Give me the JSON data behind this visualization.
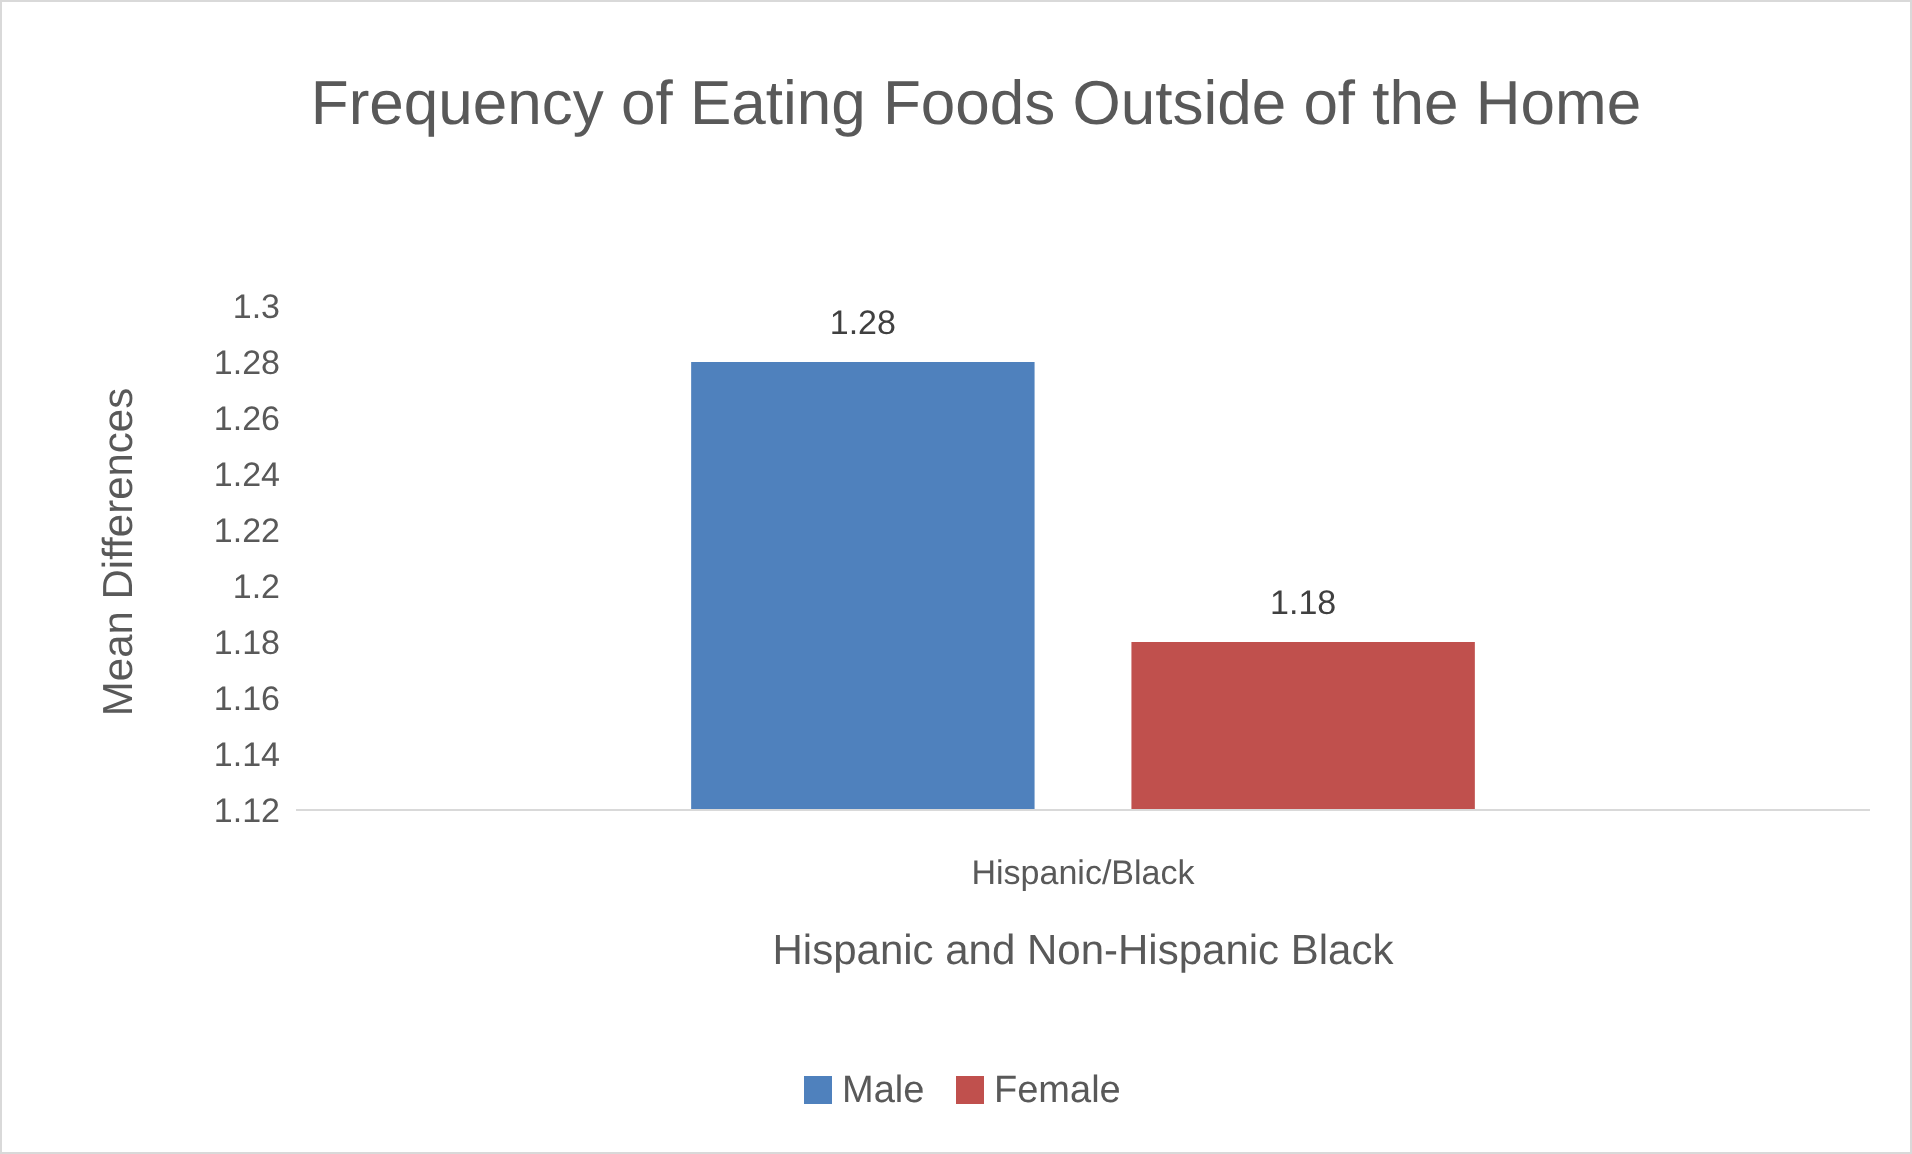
{
  "chart_data": {
    "type": "bar",
    "title": "Frequency of Eating Foods Outside of the Home",
    "xlabel": "Hispanic and Non-Hispanic Black",
    "ylabel": "Mean Differences",
    "categories": [
      "Hispanic/Black"
    ],
    "series": [
      {
        "name": "Male",
        "color": "#4f81bd",
        "values": [
          1.28
        ]
      },
      {
        "name": "Female",
        "color": "#c0504d",
        "values": [
          1.18
        ]
      }
    ],
    "ylim": [
      1.12,
      1.3
    ],
    "yticks": [
      1.12,
      1.14,
      1.16,
      1.18,
      1.2,
      1.22,
      1.24,
      1.26,
      1.28,
      1.3
    ],
    "data_labels": true,
    "legend": "bottom"
  }
}
